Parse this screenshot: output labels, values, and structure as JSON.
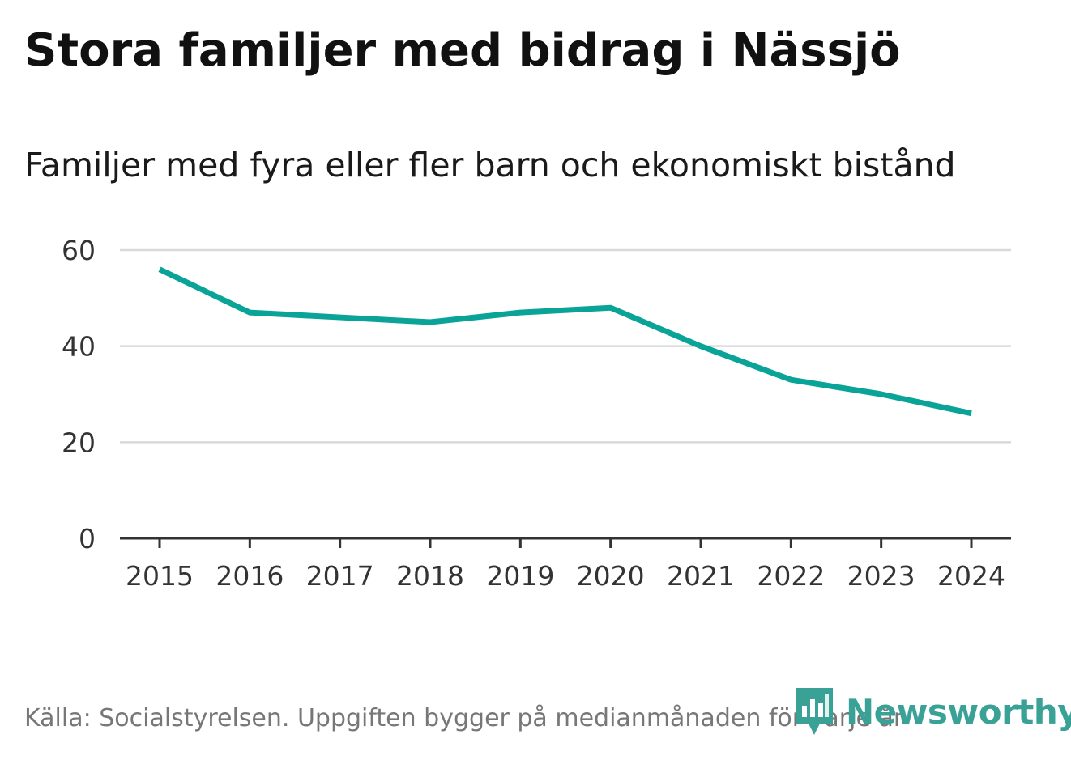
{
  "chart_data": {
    "type": "line",
    "title": "Stora familjer med bidrag i Nässjö",
    "subtitle": "Familjer med fyra eller fler barn och ekonomiskt bistånd",
    "categories": [
      "2015",
      "2016",
      "2017",
      "2018",
      "2019",
      "2020",
      "2021",
      "2022",
      "2023",
      "2024"
    ],
    "series": [
      {
        "name": "Familjer med fyra eller fler barn och ekonomiskt bistånd",
        "values": [
          56,
          47,
          46,
          45,
          47,
          48,
          40,
          33,
          30,
          26
        ],
        "color": "#0aa398"
      }
    ],
    "yticks": [
      "0",
      "20",
      "40",
      "60"
    ],
    "ylim": [
      0,
      60
    ],
    "xlabel": "",
    "ylabel": "",
    "grid": true,
    "legend": "none",
    "source": "Källa: Socialstyrelsen. Uppgiften bygger på medianmånaden för varje år"
  },
  "brand": {
    "name": "Newsworthy",
    "color": "#3aa197",
    "icon": "newsworthy-logo-icon"
  },
  "colors": {
    "grid": "#d9d9d9",
    "axis": "#333333",
    "line": "#0aa398"
  }
}
